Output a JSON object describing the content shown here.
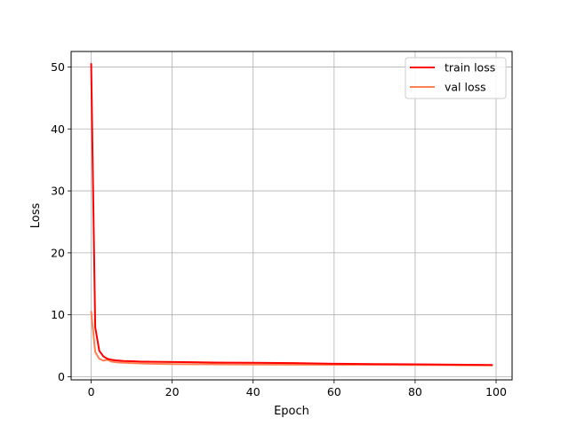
{
  "chart_data": {
    "type": "line",
    "xlabel": "Epoch",
    "ylabel": "Loss",
    "xlim": [
      -4.95,
      103.95
    ],
    "ylim": [
      -0.5,
      52.5
    ],
    "xticks": [
      0,
      20,
      40,
      60,
      80,
      100
    ],
    "yticks": [
      0,
      10,
      20,
      30,
      40,
      50
    ],
    "grid": true,
    "legend_position": "top-right",
    "series": [
      {
        "name": "train loss",
        "color": "#ff0000",
        "x": [
          0,
          1,
          2,
          3,
          4,
          5,
          6,
          7,
          8,
          10,
          12,
          15,
          20,
          25,
          30,
          40,
          50,
          60,
          70,
          80,
          90,
          99
        ],
        "y": [
          50.5,
          8.0,
          4.2,
          3.3,
          2.9,
          2.75,
          2.65,
          2.6,
          2.55,
          2.5,
          2.45,
          2.42,
          2.38,
          2.35,
          2.3,
          2.25,
          2.2,
          2.1,
          2.05,
          2.0,
          1.95,
          1.9
        ]
      },
      {
        "name": "val loss",
        "color": "#ff7f50",
        "x": [
          0,
          1,
          2,
          3,
          4,
          5,
          6,
          7,
          8,
          10,
          12,
          15,
          20,
          25,
          30,
          40,
          50,
          60,
          70,
          80,
          90,
          99
        ],
        "y": [
          10.5,
          4.0,
          2.9,
          2.6,
          2.75,
          2.45,
          2.35,
          2.3,
          2.25,
          2.2,
          2.15,
          2.1,
          2.05,
          2.02,
          2.0,
          1.98,
          1.96,
          1.94,
          1.93,
          1.9,
          1.87,
          1.85
        ]
      }
    ]
  }
}
